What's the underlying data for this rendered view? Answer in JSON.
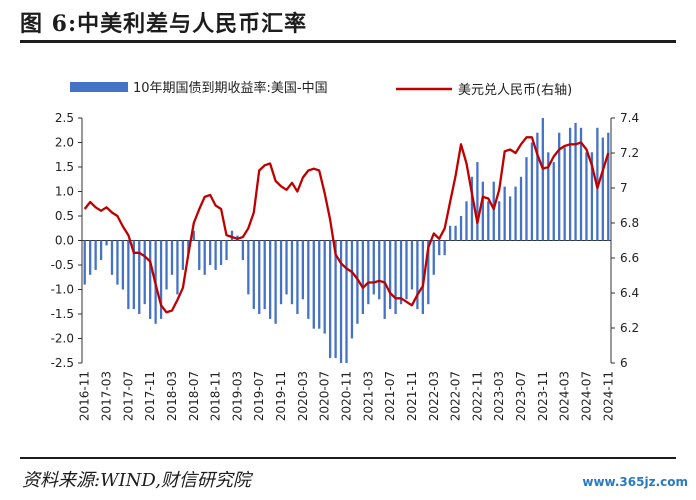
{
  "figure": {
    "title": "图 6:中美利差与人民币汇率",
    "source": "资料来源:WIND,财信研究院",
    "watermark": "www.365jz.com"
  },
  "colors": {
    "bar": "#4472c4",
    "line": "#c00000",
    "axis": "#333333"
  },
  "chart_data": {
    "type": "bar+line",
    "title": "",
    "xlabel": "",
    "legend": {
      "placement": "top",
      "entries": [
        "10年期国债到期收益率:美国-中国",
        "美元兑人民币(右轴)"
      ]
    },
    "grid": false,
    "x_start": "2016-11",
    "x_end": "2024-12",
    "x_tick_labels": [
      "2016-11",
      "2017-03",
      "2017-07",
      "2017-11",
      "2018-03",
      "2018-07",
      "2018-11",
      "2019-03",
      "2019-07",
      "2019-11",
      "2020-03",
      "2020-07",
      "2020-11",
      "2021-03",
      "2021-07",
      "2021-11",
      "2022-03",
      "2022-07",
      "2022-11",
      "2023-03",
      "2023-07",
      "2023-11",
      "2024-03",
      "2024-07",
      "2024-11"
    ],
    "y_left": {
      "range": [
        -2.5,
        2.5
      ],
      "ticks": [
        "2.5",
        "2.0",
        "1.5",
        "1.0",
        "0.5",
        "0.0",
        "-0.5",
        "-1.0",
        "-1.5",
        "-2.0",
        "-2.5"
      ],
      "values": [
        2.5,
        2.0,
        1.5,
        1.0,
        0.5,
        0,
        -0.5,
        -1.0,
        -1.5,
        -2.0,
        -2.5
      ]
    },
    "y_right": {
      "range": [
        6.0,
        7.4
      ],
      "ticks": [
        "7.4",
        "7.2",
        "7",
        "6.8",
        "6.6",
        "6.4",
        "6.2",
        "6"
      ],
      "values": [
        7.4,
        7.2,
        7.0,
        6.8,
        6.6,
        6.4,
        6.2,
        6.0
      ]
    },
    "series": [
      {
        "name": "10年期国债到期收益率:美国-中国",
        "type": "bar",
        "axis": "left",
        "values": [
          -0.9,
          -0.7,
          -0.6,
          -0.4,
          -0.1,
          -0.7,
          -0.9,
          -1.0,
          -1.4,
          -1.4,
          -1.5,
          -1.3,
          -1.6,
          -1.7,
          -1.6,
          -1.0,
          -0.7,
          -1.1,
          -0.6,
          -0.3,
          0.2,
          -0.6,
          -0.7,
          -0.5,
          -0.6,
          -0.5,
          -0.4,
          0.2,
          0.1,
          -0.4,
          -1.1,
          -1.4,
          -1.5,
          -1.4,
          -1.6,
          -1.7,
          -1.3,
          -1.1,
          -1.3,
          -1.5,
          -1.2,
          -1.6,
          -1.8,
          -1.8,
          -1.9,
          -2.4,
          -2.4,
          -2.5,
          -2.5,
          -2.0,
          -1.7,
          -1.5,
          -1.3,
          -1.1,
          -1.2,
          -1.6,
          -1.4,
          -1.5,
          -1.3,
          -1.2,
          -1.0,
          -1.4,
          -1.5,
          -1.3,
          -0.7,
          -0.3,
          -0.3,
          0.3,
          0.3,
          0.5,
          0.8,
          1.3,
          1.6,
          1.2,
          0.8,
          1.2,
          0.8,
          1.1,
          0.9,
          1.1,
          1.3,
          1.7,
          2.0,
          2.2,
          2.5,
          1.8,
          1.6,
          2.2,
          1.9,
          2.3,
          2.4,
          2.3,
          1.8,
          1.8,
          2.3,
          2.1,
          2.2
        ]
      },
      {
        "name": "美元兑人民币(右轴)",
        "type": "line",
        "axis": "right",
        "values": [
          6.88,
          6.92,
          6.89,
          6.87,
          6.89,
          6.86,
          6.84,
          6.78,
          6.73,
          6.63,
          6.63,
          6.61,
          6.58,
          6.45,
          6.33,
          6.29,
          6.3,
          6.36,
          6.43,
          6.62,
          6.8,
          6.88,
          6.95,
          6.96,
          6.9,
          6.88,
          6.73,
          6.72,
          6.71,
          6.72,
          6.77,
          6.86,
          7.1,
          7.13,
          7.14,
          7.04,
          7.01,
          6.99,
          7.03,
          6.98,
          7.06,
          7.1,
          7.11,
          7.1,
          6.97,
          6.82,
          6.62,
          6.57,
          6.54,
          6.52,
          6.48,
          6.43,
          6.46,
          6.46,
          6.47,
          6.46,
          6.4,
          6.37,
          6.37,
          6.35,
          6.33,
          6.39,
          6.44,
          6.66,
          6.74,
          6.71,
          6.77,
          6.92,
          7.07,
          7.25,
          7.14,
          6.97,
          6.8,
          6.95,
          6.94,
          6.88,
          6.99,
          7.21,
          7.22,
          7.2,
          7.25,
          7.29,
          7.29,
          7.19,
          7.11,
          7.12,
          7.18,
          7.22,
          7.24,
          7.25,
          7.25,
          7.26,
          7.22,
          7.13,
          7.0,
          7.1,
          7.2
        ]
      }
    ]
  }
}
